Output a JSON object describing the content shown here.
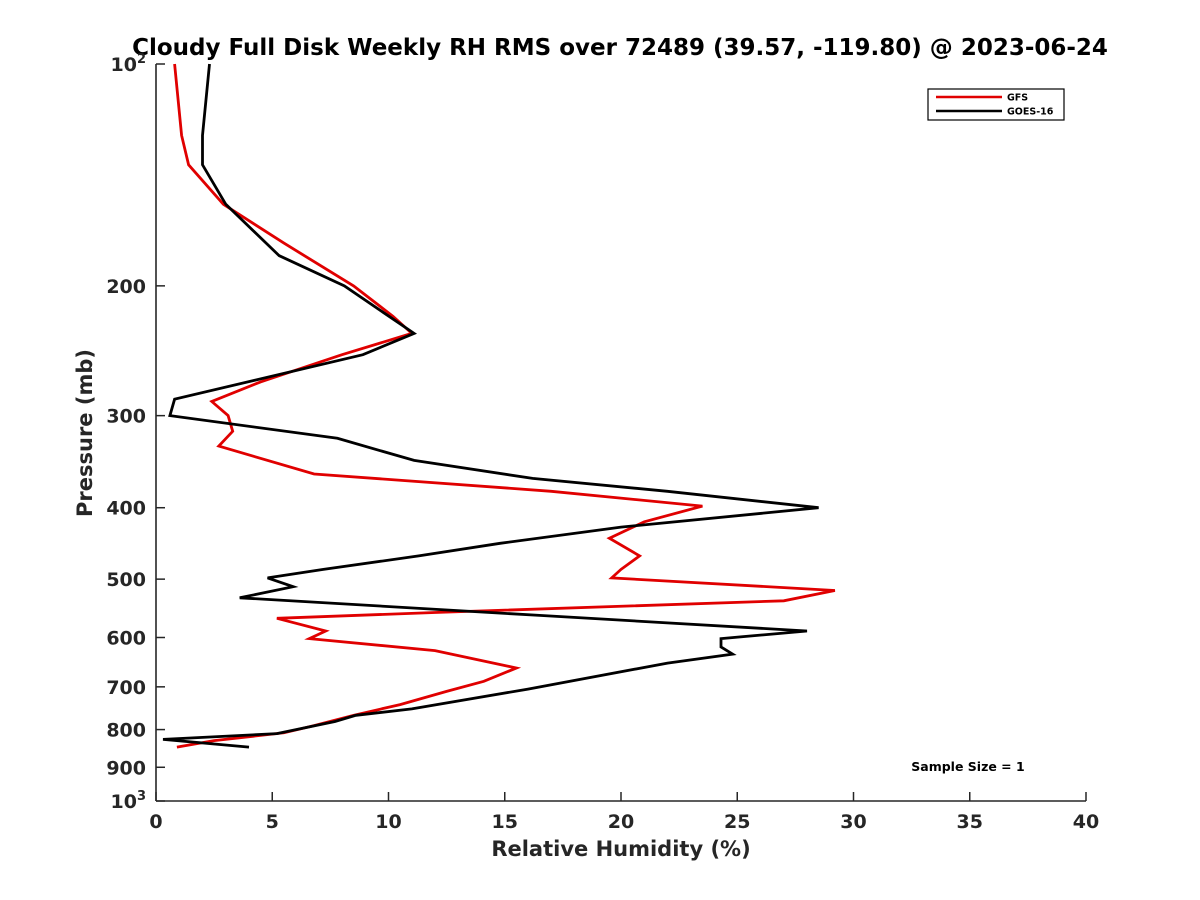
{
  "chart_data": {
    "type": "line",
    "title": "Cloudy Full Disk Weekly RH RMS over 72489 (39.57, -119.80) @ 2023-06-24",
    "xlabel": "Relative Humidity (%)",
    "ylabel": "Pressure (mb)",
    "xlim": [
      0,
      40
    ],
    "ylim": [
      100,
      1000
    ],
    "y_scale": "log",
    "y_reversed": true,
    "grid": false,
    "x_ticks": [
      0,
      5,
      10,
      15,
      20,
      25,
      30,
      35,
      40
    ],
    "x_tick_labels": [
      "0",
      "5",
      "10",
      "15",
      "20",
      "25",
      "30",
      "35",
      "40"
    ],
    "y_ticks": [
      100,
      200,
      300,
      400,
      500,
      600,
      700,
      800,
      900,
      1000
    ],
    "y_tick_labels": [
      {
        "base": "10",
        "sup": "2"
      },
      {
        "base": "200",
        "sup": ""
      },
      {
        "base": "300",
        "sup": ""
      },
      {
        "base": "400",
        "sup": ""
      },
      {
        "base": "500",
        "sup": ""
      },
      {
        "base": "600",
        "sup": ""
      },
      {
        "base": "700",
        "sup": ""
      },
      {
        "base": "800",
        "sup": ""
      },
      {
        "base": "900",
        "sup": ""
      },
      {
        "base": "10",
        "sup": "3"
      }
    ],
    "legend_position": "top-right",
    "annotation": "Sample Size = 1",
    "series": [
      {
        "name": "GFS",
        "color": "#e00000",
        "points": [
          [
            0.8,
            100
          ],
          [
            1.1,
            125
          ],
          [
            1.4,
            137
          ],
          [
            2.9,
            155
          ],
          [
            5.5,
            175
          ],
          [
            8.5,
            200
          ],
          [
            10.2,
            220
          ],
          [
            11.0,
            232
          ],
          [
            8.0,
            248
          ],
          [
            4.5,
            270
          ],
          [
            2.4,
            287
          ],
          [
            3.1,
            300
          ],
          [
            3.3,
            315
          ],
          [
            2.7,
            330
          ],
          [
            6.8,
            360
          ],
          [
            17.0,
            380
          ],
          [
            23.5,
            398
          ],
          [
            21.0,
            418
          ],
          [
            19.5,
            440
          ],
          [
            20.8,
            465
          ],
          [
            20.0,
            485
          ],
          [
            19.6,
            498
          ],
          [
            29.2,
            518
          ],
          [
            27.0,
            535
          ],
          [
            12.0,
            555
          ],
          [
            5.2,
            565
          ],
          [
            7.3,
            588
          ],
          [
            6.6,
            602
          ],
          [
            12.0,
            625
          ],
          [
            15.5,
            660
          ],
          [
            14.1,
            688
          ],
          [
            12.5,
            710
          ],
          [
            10.5,
            740
          ],
          [
            8.5,
            765
          ],
          [
            6.8,
            790
          ],
          [
            5.5,
            808
          ],
          [
            2.5,
            828
          ],
          [
            0.9,
            845
          ]
        ]
      },
      {
        "name": "GOES-16",
        "color": "#000000",
        "points": [
          [
            2.3,
            100
          ],
          [
            2.0,
            125
          ],
          [
            2.0,
            137
          ],
          [
            3.0,
            155
          ],
          [
            5.3,
            182
          ],
          [
            8.1,
            200
          ],
          [
            11.1,
            232
          ],
          [
            8.9,
            248
          ],
          [
            0.8,
            285
          ],
          [
            0.6,
            300
          ],
          [
            7.8,
            322
          ],
          [
            11.1,
            345
          ],
          [
            16.2,
            365
          ],
          [
            22.0,
            380
          ],
          [
            28.5,
            400
          ],
          [
            20.0,
            425
          ],
          [
            14.8,
            447
          ],
          [
            11.3,
            465
          ],
          [
            7.2,
            485
          ],
          [
            4.8,
            498
          ],
          [
            5.9,
            512
          ],
          [
            3.6,
            530
          ],
          [
            16.5,
            560
          ],
          [
            28.0,
            588
          ],
          [
            24.3,
            602
          ],
          [
            24.3,
            618
          ],
          [
            24.8,
            632
          ],
          [
            22.0,
            650
          ],
          [
            16.0,
            705
          ],
          [
            11.0,
            750
          ],
          [
            8.6,
            765
          ],
          [
            7.7,
            780
          ],
          [
            5.2,
            810
          ],
          [
            0.3,
            825
          ],
          [
            4.0,
            845
          ]
        ]
      }
    ]
  }
}
